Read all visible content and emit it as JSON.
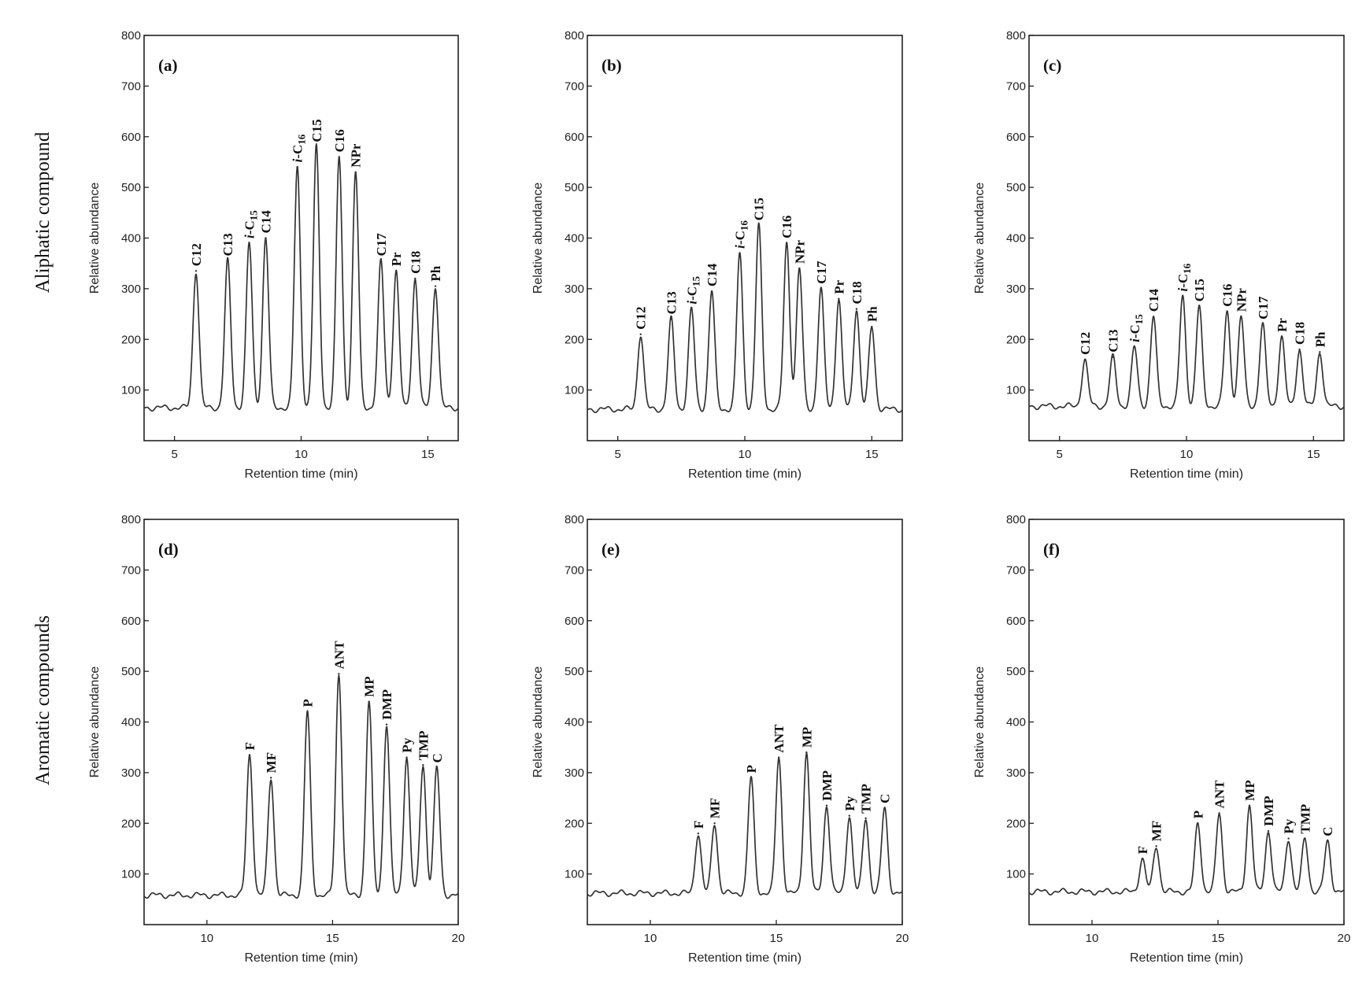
{
  "row_labels": [
    "Aliphatic compound",
    "Aromatic compounds"
  ],
  "chart_data": [
    {
      "type": "line",
      "panel": "(a)",
      "xlabel": "Retention time (min)",
      "ylabel": "Relative abundance",
      "xlim": [
        3.8,
        16.2
      ],
      "ylim": [
        0,
        800
      ],
      "xticks": [
        5,
        10,
        15
      ],
      "yticks": [
        100,
        200,
        300,
        400,
        500,
        600,
        700,
        800
      ],
      "baseline": 65,
      "peaks": [
        {
          "label": "C12",
          "x": 5.85,
          "y": 335
        },
        {
          "label": "C13",
          "x": 7.1,
          "y": 355
        },
        {
          "label": "i-C15",
          "x": 7.95,
          "y": 390
        },
        {
          "label": "C14",
          "x": 8.6,
          "y": 400
        },
        {
          "label": "i-C16",
          "x": 9.85,
          "y": 540
        },
        {
          "label": "C15",
          "x": 10.6,
          "y": 580
        },
        {
          "label": "C16",
          "x": 11.5,
          "y": 560
        },
        {
          "label": "NPr",
          "x": 12.15,
          "y": 530
        },
        {
          "label": "C17",
          "x": 13.15,
          "y": 355
        },
        {
          "label": "Pr",
          "x": 13.75,
          "y": 335
        },
        {
          "label": "C18",
          "x": 14.5,
          "y": 320
        },
        {
          "label": "Ph",
          "x": 15.3,
          "y": 305
        }
      ]
    },
    {
      "type": "line",
      "panel": "(b)",
      "xlabel": "Retention time (min)",
      "ylabel": "Relative abundance",
      "xlim": [
        3.8,
        16.2
      ],
      "ylim": [
        0,
        800
      ],
      "xticks": [
        5,
        10,
        15
      ],
      "yticks": [
        100,
        200,
        300,
        400,
        500,
        600,
        700,
        800
      ],
      "baseline": 62,
      "peaks": [
        {
          "label": "C12",
          "x": 5.9,
          "y": 210
        },
        {
          "label": "C13",
          "x": 7.1,
          "y": 240
        },
        {
          "label": "i-C15",
          "x": 7.9,
          "y": 260
        },
        {
          "label": "C14",
          "x": 8.7,
          "y": 295
        },
        {
          "label": "i-C16",
          "x": 9.8,
          "y": 370
        },
        {
          "label": "C15",
          "x": 10.55,
          "y": 425
        },
        {
          "label": "C16",
          "x": 11.65,
          "y": 390
        },
        {
          "label": "NPr",
          "x": 12.15,
          "y": 340
        },
        {
          "label": "C17",
          "x": 13.0,
          "y": 300
        },
        {
          "label": "Pr",
          "x": 13.7,
          "y": 280
        },
        {
          "label": "C18",
          "x": 14.4,
          "y": 260
        },
        {
          "label": "Ph",
          "x": 15.0,
          "y": 225
        }
      ]
    },
    {
      "type": "line",
      "panel": "(c)",
      "xlabel": "Retention time (min)",
      "ylabel": "Relative abundance",
      "xlim": [
        3.8,
        16.2
      ],
      "ylim": [
        0,
        800
      ],
      "xticks": [
        5,
        10,
        15
      ],
      "yticks": [
        100,
        200,
        300,
        400,
        500,
        600,
        700,
        800
      ],
      "baseline": 68,
      "peaks": [
        {
          "label": "C12",
          "x": 6.0,
          "y": 160
        },
        {
          "label": "C13",
          "x": 7.1,
          "y": 165
        },
        {
          "label": "i-C15",
          "x": 7.95,
          "y": 185
        },
        {
          "label": "C14",
          "x": 8.7,
          "y": 245
        },
        {
          "label": "i-C16",
          "x": 9.85,
          "y": 285
        },
        {
          "label": "C15",
          "x": 10.5,
          "y": 265
        },
        {
          "label": "C16",
          "x": 11.6,
          "y": 255
        },
        {
          "label": "NPr",
          "x": 12.15,
          "y": 245
        },
        {
          "label": "C17",
          "x": 13.0,
          "y": 230
        },
        {
          "label": "Pr",
          "x": 13.75,
          "y": 205
        },
        {
          "label": "C18",
          "x": 14.45,
          "y": 180
        },
        {
          "label": "Ph",
          "x": 15.25,
          "y": 175
        }
      ]
    },
    {
      "type": "line",
      "panel": "(d)",
      "xlabel": "Retention time (min)",
      "ylabel": "Relative abundance",
      "xlim": [
        7.5,
        20.0
      ],
      "ylim": [
        0,
        800
      ],
      "xticks": [
        10,
        15,
        20
      ],
      "yticks": [
        100,
        200,
        300,
        400,
        500,
        600,
        700,
        800
      ],
      "baseline": 58,
      "peaks": [
        {
          "label": "F",
          "x": 11.7,
          "y": 335
        },
        {
          "label": "MF",
          "x": 12.55,
          "y": 290
        },
        {
          "label": "P",
          "x": 14.0,
          "y": 420
        },
        {
          "label": "ANT",
          "x": 15.25,
          "y": 495
        },
        {
          "label": "MP",
          "x": 16.45,
          "y": 440
        },
        {
          "label": "DMP",
          "x": 17.15,
          "y": 395
        },
        {
          "label": "Py",
          "x": 17.95,
          "y": 330
        },
        {
          "label": "TMP",
          "x": 18.6,
          "y": 315
        },
        {
          "label": "C",
          "x": 19.15,
          "y": 310
        }
      ]
    },
    {
      "type": "line",
      "panel": "(e)",
      "xlabel": "Retention time (min)",
      "ylabel": "Relative abundance",
      "xlim": [
        7.5,
        20.0
      ],
      "ylim": [
        0,
        800
      ],
      "xticks": [
        10,
        15,
        20
      ],
      "yticks": [
        100,
        200,
        300,
        400,
        500,
        600,
        700,
        800
      ],
      "baseline": 62,
      "peaks": [
        {
          "label": "F",
          "x": 11.9,
          "y": 180
        },
        {
          "label": "MF",
          "x": 12.55,
          "y": 200
        },
        {
          "label": "P",
          "x": 14.0,
          "y": 290
        },
        {
          "label": "ANT",
          "x": 15.1,
          "y": 330
        },
        {
          "label": "MP",
          "x": 16.2,
          "y": 340
        },
        {
          "label": "DMP",
          "x": 17.0,
          "y": 235
        },
        {
          "label": "Py",
          "x": 17.9,
          "y": 215
        },
        {
          "label": "TMP",
          "x": 18.55,
          "y": 210
        },
        {
          "label": "C",
          "x": 19.3,
          "y": 230
        }
      ]
    },
    {
      "type": "line",
      "panel": "(f)",
      "xlabel": "Retention time (min)",
      "ylabel": "Relative abundance",
      "xlim": [
        7.5,
        20.0
      ],
      "ylim": [
        0,
        800
      ],
      "xticks": [
        10,
        15,
        20
      ],
      "yticks": [
        100,
        200,
        300,
        400,
        500,
        600,
        700,
        800
      ],
      "baseline": 65,
      "peaks": [
        {
          "label": "F",
          "x": 12.0,
          "y": 130
        },
        {
          "label": "MF",
          "x": 12.55,
          "y": 155
        },
        {
          "label": "P",
          "x": 14.2,
          "y": 200
        },
        {
          "label": "ANT",
          "x": 15.05,
          "y": 220
        },
        {
          "label": "MP",
          "x": 16.25,
          "y": 235
        },
        {
          "label": "DMP",
          "x": 17.0,
          "y": 185
        },
        {
          "label": "Py",
          "x": 17.8,
          "y": 170
        },
        {
          "label": "TMP",
          "x": 18.45,
          "y": 170
        },
        {
          "label": "C",
          "x": 19.35,
          "y": 165
        }
      ]
    }
  ]
}
